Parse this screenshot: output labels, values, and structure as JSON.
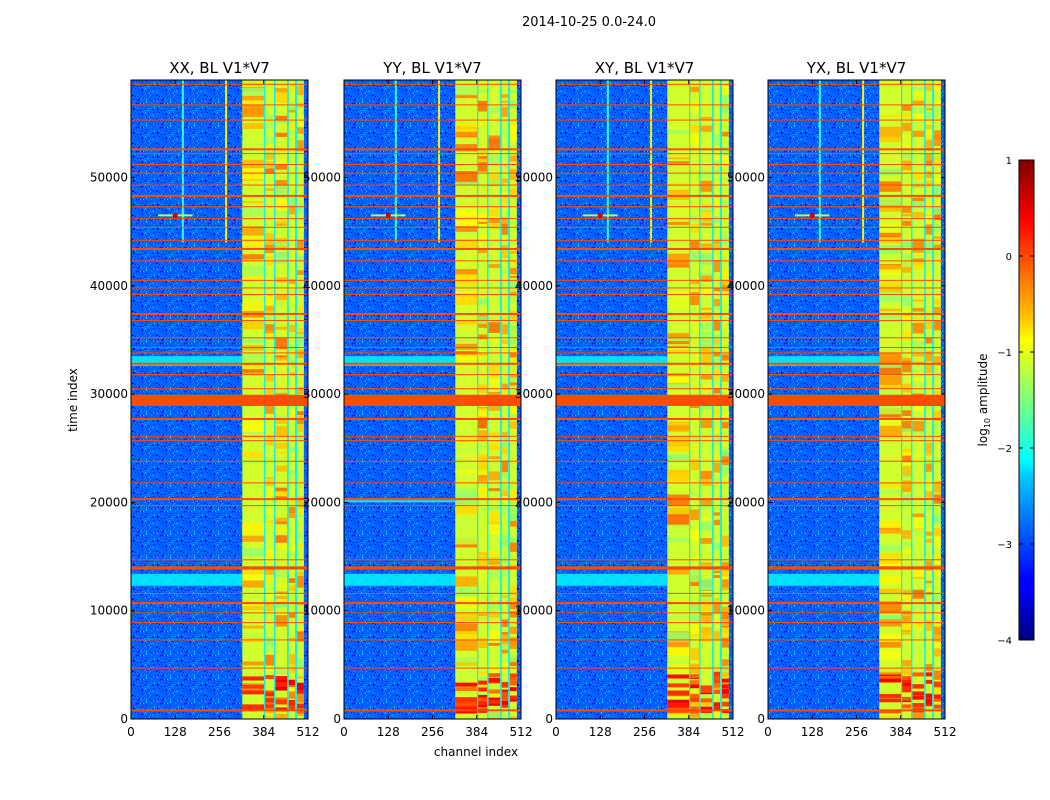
{
  "figure": {
    "suptitle": "2014-10-25 0.0-24.0"
  },
  "chart_data": {
    "type": "heatmap",
    "suptitle": "2014-10-25 0.0-24.0",
    "xlabel": "channel index",
    "ylabel": "time index",
    "xlim": [
      0,
      512
    ],
    "ylim": [
      0,
      59000
    ],
    "xticks": [
      0,
      128,
      256,
      384,
      512
    ],
    "yticks": [
      0,
      10000,
      20000,
      30000,
      40000,
      50000
    ],
    "colorbar": {
      "label": "log₁₀ amplitude",
      "label_main": "log",
      "label_sub": "10",
      "label_rest": " amplitude",
      "range": [
        -4,
        1
      ],
      "ticks": [
        {
          "value": 1,
          "text": "1"
        },
        {
          "value": 0,
          "text": "0"
        },
        {
          "value": -1,
          "text": "−1"
        },
        {
          "value": -2,
          "text": "−2"
        },
        {
          "value": -3,
          "text": "−3"
        },
        {
          "value": -4,
          "text": "−4"
        }
      ],
      "colormap": "jet"
    },
    "panels": [
      {
        "title": "XX, BL V1*V7"
      },
      {
        "title": "YY, BL V1*V7"
      },
      {
        "title": "XY, BL V1*V7"
      },
      {
        "title": "YX, BL V1*V7"
      }
    ],
    "features": {
      "background_level": -2.9,
      "rfi_band_channels": [
        [
          322,
          385
        ],
        [
          388,
          414
        ],
        [
          418,
          452
        ],
        [
          456,
          475
        ],
        [
          480,
          500
        ]
      ],
      "rfi_band_level": -1.0,
      "flagged_rows_time_index": [
        800,
        4700,
        7300,
        8900,
        9800,
        10700,
        11600,
        13900,
        14700,
        19700,
        20300,
        21800,
        23800,
        25700,
        26100,
        27700,
        29400,
        29800,
        30500,
        31800,
        32800,
        33800,
        34300,
        35200,
        36800,
        37400,
        39200,
        39800,
        40500,
        42300,
        43400,
        44200,
        45400,
        46200,
        47300,
        48300,
        49300,
        50400,
        51200,
        52200,
        52600,
        55300,
        56700,
        58600
      ],
      "flag_level": 0.0,
      "bright_source": {
        "channel": 128,
        "time_index": 46500
      },
      "narrow_rfi_channels": [
        150,
        275
      ]
    }
  }
}
